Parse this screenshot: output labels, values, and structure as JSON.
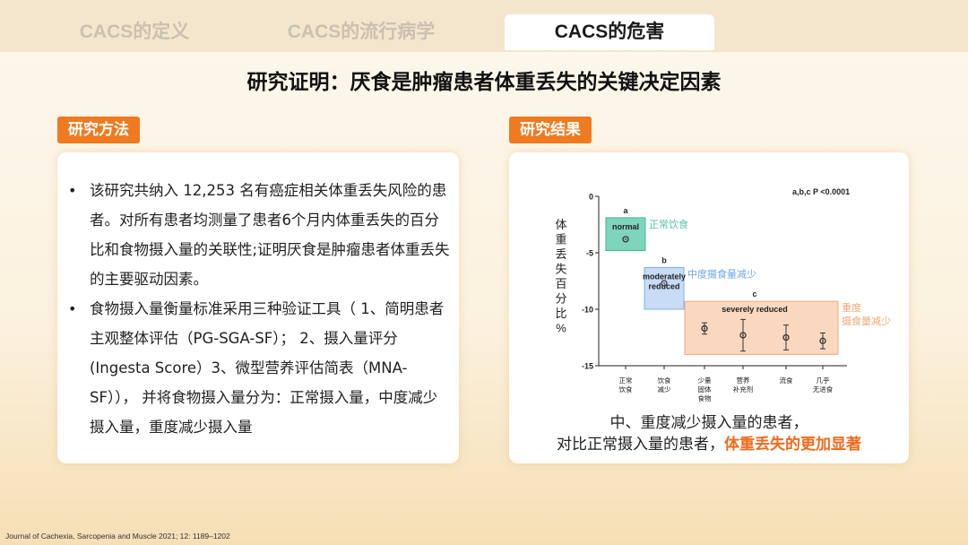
{
  "tabs": [
    {
      "label": "CACS的定义",
      "active": false
    },
    {
      "label": "CACS的流行病学",
      "active": false
    },
    {
      "label": "CACS的危害",
      "active": true
    }
  ],
  "title": "研究证明：厌食是肿瘤患者体重丢失的关键决定因素",
  "methods": {
    "badge": "研究方法",
    "bullets": [
      "该研究共纳入 12,253 名有癌症相关体重丢失风险的患者。对所有患者均测量了患者6个月内体重丢失的百分比和食物摄入量的关联性;证明厌食是肿瘤患者体重丢失的主要驱动因素。",
      "食物摄入量衡量标准采用三种验证工具（ 1、简明患者主观整体评估（PG-SGA-SF）； 2、摄入量评分(Ingesta Score）3、微型营养评估简表（MNA-SF））， 并将食物摄入量分为：正常摄入量，中度减少摄入量，重度减少摄入量"
    ]
  },
  "results": {
    "badge": "研究结果",
    "conclusion_line1": "中、重度减少摄入量的患者，",
    "conclusion_line2": "对比正常摄入量的患者，",
    "conclusion_highlight": "体重丢失的更加显著"
  },
  "footer": "Journal of Cachexia, Sarcopenia and Muscle 2021; 12: 1189–1202",
  "chart_data": {
    "type": "scatter",
    "ylabel": "体重丢失百分比%",
    "ylim": [
      -15,
      0
    ],
    "yticks": [
      "0",
      "-5",
      "-10",
      "-15"
    ],
    "significance": "a,b,c P <0.0001",
    "categories": [
      {
        "label": [
          "正常",
          "饮食"
        ]
      },
      {
        "label": [
          "饮食",
          "减少"
        ]
      },
      {
        "label": [
          "少量",
          "固体",
          "食物"
        ]
      },
      {
        "label": [
          "营养",
          "补充剂"
        ]
      },
      {
        "label": [
          "流食"
        ]
      },
      {
        "label": [
          "几乎",
          "无进食"
        ]
      }
    ],
    "points": [
      {
        "category": 0,
        "y": -3.8,
        "err": 0
      },
      {
        "category": 1,
        "y": -7.7,
        "err": 0
      },
      {
        "category": 2,
        "y": -11.7,
        "err": 0.5
      },
      {
        "category": 3,
        "y": -12.3,
        "err": 1.4
      },
      {
        "category": 4,
        "y": -12.5,
        "err": 1.1
      },
      {
        "category": 5,
        "y": -12.8,
        "err": 0.7
      }
    ],
    "groups": [
      {
        "letter": "a",
        "labels": [
          "normal"
        ],
        "legend": [
          "正常饮食"
        ],
        "color": "#7fd4bd",
        "border": "#3db794",
        "legend_color": "#5ac2a6",
        "from": 0,
        "to": 0,
        "ytop": -1.9,
        "ybottom": -4.8
      },
      {
        "letter": "b",
        "labels": [
          "moderately",
          "reduced"
        ],
        "legend": [
          "中度摄食量减少"
        ],
        "color": "#c8dcf5",
        "border": "#7fb0e8",
        "legend_color": "#6fa6e6",
        "from": 1,
        "to": 1,
        "ytop": -6.3,
        "ybottom": -10
      },
      {
        "letter": "c",
        "labels": [
          "severely reduced"
        ],
        "legend": [
          "重度",
          "摄食量减少"
        ],
        "color": "#fad8bf",
        "border": "#f2a874",
        "legend_color": "#f2a874",
        "from": 2,
        "to": 5,
        "ytop": -9.3,
        "ybottom": -14
      }
    ]
  }
}
